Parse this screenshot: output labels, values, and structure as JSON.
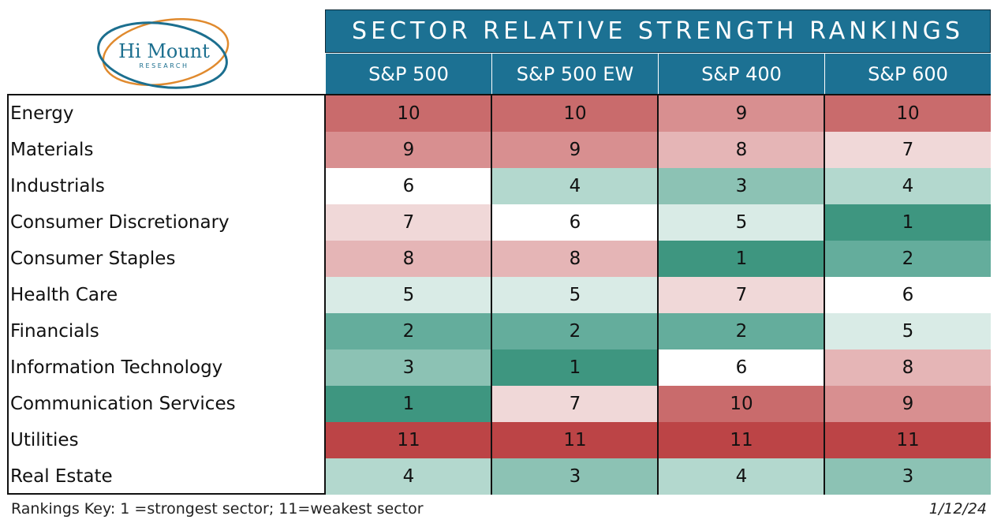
{
  "logo": {
    "name": "Hi Mount",
    "sub": "RESEARCH",
    "ring_colors": [
      "#1c6f8f",
      "#e08a2e"
    ]
  },
  "title": "SECTOR RELATIVE STRENGTH RANKINGS",
  "colors": {
    "header_bg": "#1c7193",
    "header_text": "#ffffff",
    "scale": {
      "1": "#3e9680",
      "2": "#64ad9c",
      "3": "#8cc2b4",
      "4": "#b3d8ce",
      "5": "#d9ebe6",
      "6": "#ffffff",
      "7": "#f0d8d8",
      "8": "#e5b5b6",
      "9": "#d88f90",
      "10": "#c96b6c",
      "11": "#bc4446"
    }
  },
  "chart_data": {
    "type": "table",
    "title": "SECTOR RELATIVE STRENGTH RANKINGS",
    "columns": [
      "S&P 500",
      "S&P 500 EW",
      "S&P 400",
      "S&P 600"
    ],
    "rows": [
      {
        "sector": "Energy",
        "values": [
          10,
          10,
          9,
          10
        ]
      },
      {
        "sector": "Materials",
        "values": [
          9,
          9,
          8,
          7
        ]
      },
      {
        "sector": "Industrials",
        "values": [
          6,
          4,
          3,
          4
        ]
      },
      {
        "sector": "Consumer Discretionary",
        "values": [
          7,
          6,
          5,
          1
        ]
      },
      {
        "sector": "Consumer Staples",
        "values": [
          8,
          8,
          1,
          2
        ]
      },
      {
        "sector": "Health Care",
        "values": [
          5,
          5,
          7,
          6
        ]
      },
      {
        "sector": "Financials",
        "values": [
          2,
          2,
          2,
          5
        ]
      },
      {
        "sector": "Information Technology",
        "values": [
          3,
          1,
          6,
          8
        ]
      },
      {
        "sector": "Communication Services",
        "values": [
          1,
          7,
          10,
          9
        ]
      },
      {
        "sector": "Utilities",
        "values": [
          11,
          11,
          11,
          11
        ]
      },
      {
        "sector": "Real Estate",
        "values": [
          4,
          3,
          4,
          3
        ]
      }
    ]
  },
  "footer": {
    "key": "Rankings Key: 1 =strongest sector; 11=weakest sector",
    "date": "1/12/24"
  }
}
